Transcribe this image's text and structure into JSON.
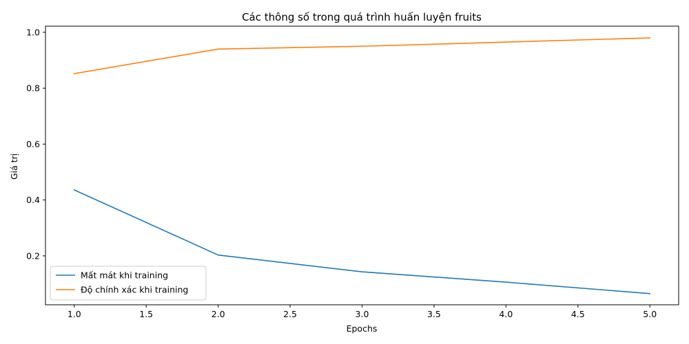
{
  "chart_data": {
    "type": "line",
    "title": "Các thông số trong quá trình huấn luyện fruits",
    "xlabel": "Epochs",
    "ylabel": "Giá trị",
    "x": [
      1,
      2,
      3,
      4,
      5
    ],
    "xlim": [
      0.8,
      5.2
    ],
    "ylim": [
      0.025,
      1.022
    ],
    "xticks": [
      1.0,
      1.5,
      2.0,
      2.5,
      3.0,
      3.5,
      4.0,
      4.5,
      5.0
    ],
    "xtick_labels": [
      "1.0",
      "1.5",
      "2.0",
      "2.5",
      "3.0",
      "3.5",
      "4.0",
      "4.5",
      "5.0"
    ],
    "yticks": [
      0.2,
      0.4,
      0.6,
      0.8,
      1.0
    ],
    "ytick_labels": [
      "0.2",
      "0.4",
      "0.6",
      "0.8",
      "1.0"
    ],
    "grid": false,
    "legend_position": "lower-left",
    "series": [
      {
        "name": "Mất mát khi training",
        "color": "#1f77b4",
        "values": [
          0.436,
          0.203,
          0.143,
          0.106,
          0.065
        ]
      },
      {
        "name": "Độ chính xác khi training",
        "color": "#ff7f0e",
        "values": [
          0.852,
          0.94,
          0.95,
          0.965,
          0.98
        ]
      }
    ]
  }
}
